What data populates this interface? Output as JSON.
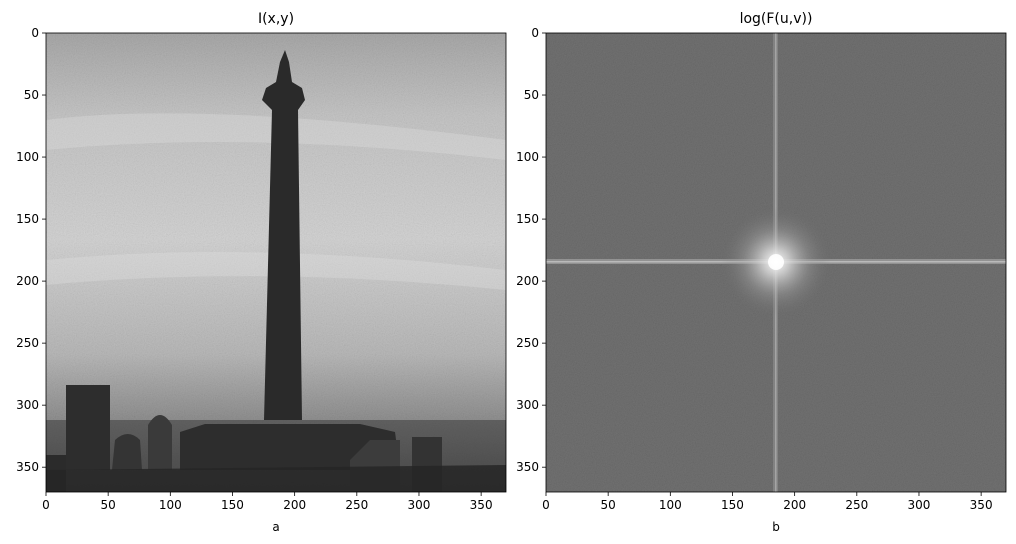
{
  "chart_data": [
    {
      "type": "heatmap",
      "title": "I(x,y)",
      "xlabel": "a",
      "ylabel": "",
      "xlim": [
        0,
        370
      ],
      "ylim": [
        370,
        0
      ],
      "x_ticks": [
        "0",
        "50",
        "100",
        "150",
        "200",
        "250",
        "300",
        "350"
      ],
      "y_ticks": [
        "0",
        "50",
        "100",
        "150",
        "200",
        "250",
        "300",
        "350"
      ],
      "colormap": "gray",
      "content": "grayscale photograph: tall tower silhouette against cloudy sky, buildings along bottom"
    },
    {
      "type": "heatmap",
      "title": "log(F(u,v))",
      "xlabel": "b",
      "ylabel": "",
      "xlim": [
        0,
        370
      ],
      "ylim": [
        370,
        0
      ],
      "x_ticks": [
        "0",
        "50",
        "100",
        "150",
        "200",
        "250",
        "300",
        "350"
      ],
      "y_ticks": [
        "0",
        "50",
        "100",
        "150",
        "200",
        "250",
        "300",
        "350"
      ],
      "colormap": "gray",
      "content": "log-magnitude Fourier spectrum: bright center peak near (185,185) with horizontal and vertical streaks"
    }
  ],
  "colors": {
    "sky_light": "#d9d9d9",
    "sky_dark": "#9a9a9a",
    "silhouette": "#2e2e2e",
    "spectrum_bg": "#6f6f6f",
    "spectrum_peak": "#f2f2f2"
  }
}
